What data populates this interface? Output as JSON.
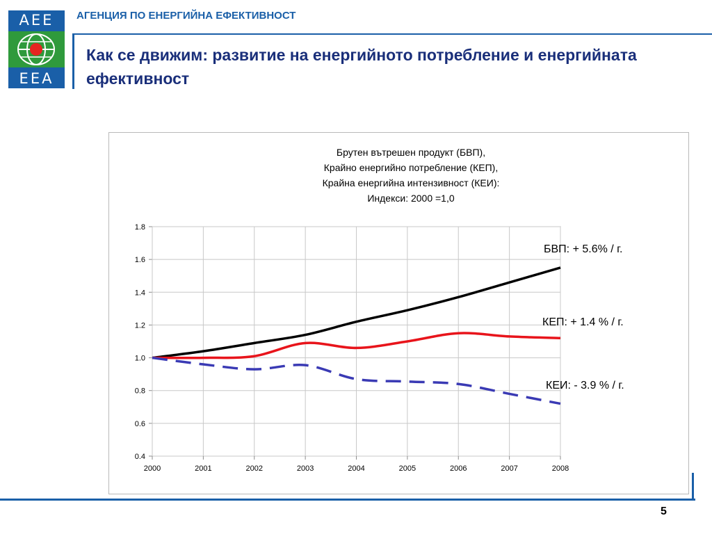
{
  "logo": {
    "top_text": "AEE",
    "bottom_text": "EEA"
  },
  "header": {
    "agency": "АГЕНЦИЯ ПО ЕНЕРГИЙНА ЕФЕКТИВНОСТ",
    "title": "Как се движим: развитие на енергийното потребление и енергийната ефективност"
  },
  "colors": {
    "brand_blue": "#1a5fa8",
    "brand_green": "#2f9a3c",
    "title_blue": "#1a2f7a",
    "logo_red": "#e52421"
  },
  "chart_data": {
    "type": "line",
    "title_lines": [
      "Брутен вътрешен продукт (БВП),",
      "Крайно енергийно потребление (КЕП),",
      "Крайна енергийна интензивност (КЕИ):",
      "Индекси: 2000 =1,0"
    ],
    "x": [
      2000,
      2001,
      2002,
      2003,
      2004,
      2005,
      2006,
      2007,
      2008
    ],
    "ylim": [
      0.4,
      1.8
    ],
    "yticks": [
      "0.4",
      "0.6",
      "0.8",
      "1.0",
      "1.2",
      "1.4",
      "1.6",
      "1.8"
    ],
    "grid": true,
    "series": [
      {
        "name": "БВП",
        "color": "#000000",
        "dash": false,
        "values": [
          1.0,
          1.04,
          1.09,
          1.14,
          1.22,
          1.29,
          1.37,
          1.46,
          1.55
        ]
      },
      {
        "name": "КЕП",
        "color": "#e8141b",
        "dash": false,
        "values": [
          1.0,
          1.0,
          1.01,
          1.09,
          1.06,
          1.1,
          1.15,
          1.13,
          1.12
        ]
      },
      {
        "name": "КЕИ",
        "color": "#3a3ab4",
        "dash": true,
        "values": [
          1.0,
          0.96,
          0.93,
          0.955,
          0.87,
          0.855,
          0.84,
          0.78,
          0.72
        ]
      }
    ],
    "annotations": [
      {
        "series": "БВП",
        "text": "БВП:  + 5.6% / г."
      },
      {
        "series": "КЕП",
        "text": "КЕП:  + 1.4 % / г."
      },
      {
        "series": "КЕИ",
        "text": "КЕИ: - 3.9 % / г."
      }
    ]
  },
  "footer": {
    "page_number": "5"
  }
}
